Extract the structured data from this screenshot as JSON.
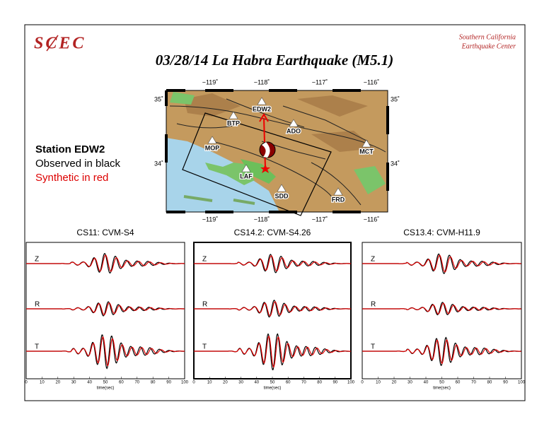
{
  "header": {
    "logo": "SCEC",
    "org": [
      "Southern California",
      "Earthquake Center"
    ],
    "title": "03/28/14 La Habra Earthquake (M5.1)"
  },
  "map": {
    "x_labels": [
      "−119˚",
      "−118˚",
      "−117˚",
      "−116˚"
    ],
    "y_labels": [
      "35˚",
      "34˚"
    ],
    "stations": [
      "EDW2",
      "BTP",
      "ADO",
      "MOP",
      "MCT",
      "LAF",
      "SDD",
      "FRD"
    ]
  },
  "legend": {
    "station": "Station EDW2",
    "observed": "Observed in black",
    "synthetic": "Synthetic in red"
  },
  "panels": [
    {
      "title": "CS11: CVM-S4",
      "components": [
        "Z",
        "R",
        "T"
      ],
      "xlim": [
        0,
        100
      ],
      "xticks": [
        0,
        10,
        20,
        30,
        40,
        50,
        60,
        70,
        80,
        90,
        100
      ],
      "xlabel": "time(sec)"
    },
    {
      "title": "CS14.2: CVM-S4.26",
      "components": [
        "Z",
        "R",
        "T"
      ],
      "xlim": [
        0,
        100
      ],
      "xticks": [
        0,
        10,
        20,
        30,
        40,
        50,
        60,
        70,
        80,
        90,
        100
      ],
      "xlabel": "time(sec)"
    },
    {
      "title": "CS13.4: CVM-H11.9",
      "components": [
        "Z",
        "R",
        "T"
      ],
      "xlim": [
        0,
        100
      ],
      "xticks": [
        0,
        10,
        20,
        30,
        40,
        50,
        60,
        70,
        80,
        90,
        100
      ],
      "xlabel": "time(sec)"
    }
  ]
}
